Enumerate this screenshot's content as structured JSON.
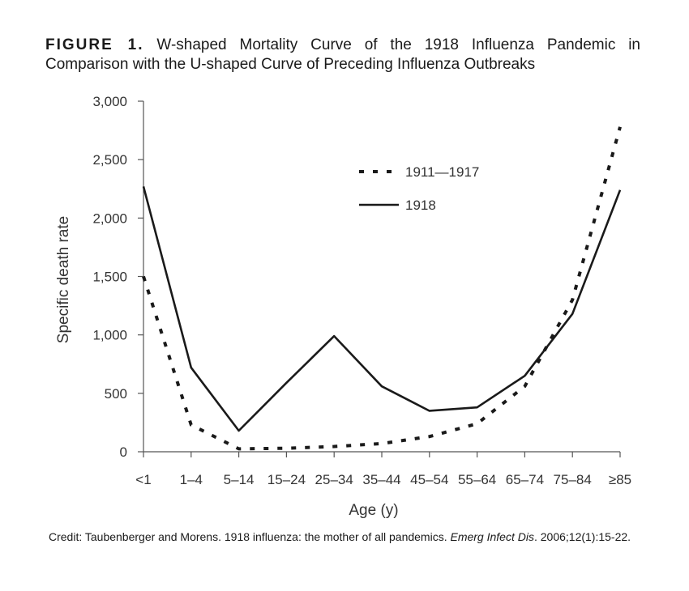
{
  "figure": {
    "label": "FIGURE 1.",
    "title": "W-shaped Mortality Curve of the 1918 Influenza Pandemic in Comparison with the U-shaped Curve of Preceding Influenza Outbreaks"
  },
  "credit": {
    "prefix": "Credit: Taubenberger and Morens. 1918 influenza: the mother of all pandemics.",
    "journal": "Emerg Infect Dis",
    "suffix": ". 2006;12(1):15-22."
  },
  "chart_data": {
    "type": "line",
    "xlabel": "Age (y)",
    "ylabel": "Specific death rate",
    "ylim": [
      0,
      3000
    ],
    "yticks": [
      0,
      500,
      1000,
      1500,
      2000,
      2500,
      3000
    ],
    "ytick_labels": [
      "0",
      "500",
      "1,000",
      "1,500",
      "2,000",
      "2,500",
      "3,000"
    ],
    "categories": [
      "<1",
      "1–4",
      "5–14",
      "15–24",
      "25–34",
      "35–44",
      "45–54",
      "55–64",
      "65–74",
      "75–84",
      "≥85"
    ],
    "grid": false,
    "legend_position": "top-right",
    "series": [
      {
        "name": "1911—1917",
        "style": "dashed",
        "color": "#1a1a1a",
        "values": [
          1500,
          230,
          25,
          30,
          45,
          70,
          130,
          240,
          560,
          1300,
          2780
        ]
      },
      {
        "name": "1918",
        "style": "solid",
        "color": "#1a1a1a",
        "values": [
          2270,
          720,
          180,
          590,
          990,
          560,
          350,
          380,
          650,
          1180,
          2240
        ]
      }
    ]
  }
}
